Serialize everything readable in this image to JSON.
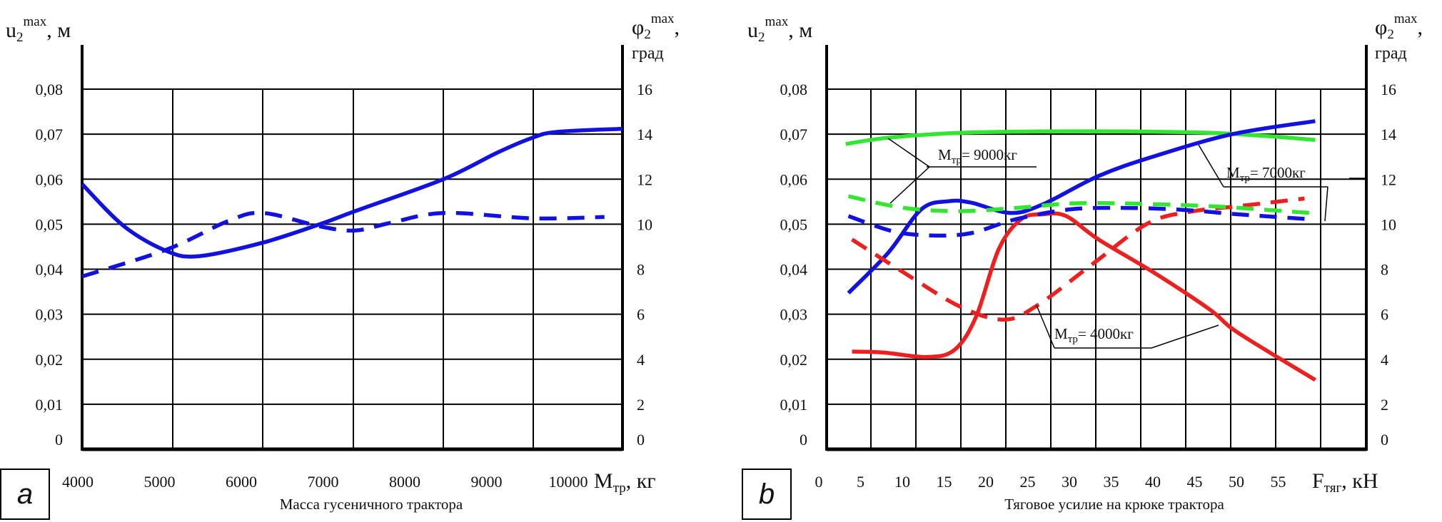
{
  "colors": {
    "blue": "#1212e0",
    "red": "#ee1f1f",
    "green": "#33e633",
    "grid": "#000000"
  },
  "chart_data": [
    {
      "type": "line",
      "panel_label": "a",
      "xlabel": "Масса гусеничного трактора",
      "x_axis_name": {
        "main": "M",
        "sub": "тр",
        "unit": ", кг"
      },
      "y_axis_name": {
        "main": "u",
        "sub": "2",
        "sup": "max",
        "unit": ", м"
      },
      "y2_axis_name": {
        "main": "φ",
        "sub": "2",
        "sup": "max",
        "comma": ",",
        "unit": "град"
      },
      "xlim": [
        4000,
        10600
      ],
      "ylim": [
        0,
        0.08
      ],
      "y2lim": [
        0,
        16
      ],
      "x_ticks": [
        4000,
        5000,
        6000,
        7000,
        8000,
        9000,
        10000
      ],
      "x_tick_labels": [
        "4000",
        "5000",
        "6000",
        "7000",
        "8000",
        "9000",
        "10000"
      ],
      "y_ticks": [
        0,
        0.01,
        0.02,
        0.03,
        0.04,
        0.05,
        0.06,
        0.07,
        0.08
      ],
      "y_tick_labels": [
        "0",
        "0,01",
        "0,02",
        "0,03",
        "0,04",
        "0,05",
        "0,06",
        "0,07",
        "0,08"
      ],
      "y2_tick_labels": [
        "0",
        "2",
        "4",
        "6",
        "8",
        "10",
        "12",
        "14",
        "16"
      ],
      "grid": true,
      "series": [
        {
          "name": "u2max",
          "color": "blue",
          "style": "solid",
          "x": [
            4000,
            4515,
            5040,
            5430,
            6210,
            6910,
            7340,
            8420,
            9080,
            9510,
            9810,
            10610
          ],
          "y": [
            0.0589,
            0.0495,
            0.044,
            0.0429,
            0.0459,
            0.05,
            0.0529,
            0.06,
            0.0659,
            0.0692,
            0.0705,
            0.0712
          ]
        },
        {
          "name": "φ2max",
          "color": "blue",
          "style": "dashed",
          "x": [
            4000,
            5040,
            5775,
            6210,
            6910,
            7340,
            7775,
            8430,
            9510,
            10390
          ],
          "y": [
            0.0384,
            0.0444,
            0.0506,
            0.0525,
            0.0495,
            0.0486,
            0.0503,
            0.0525,
            0.0513,
            0.0516
          ]
        }
      ]
    },
    {
      "type": "line",
      "panel_label": "b",
      "xlabel": "Тяговое усилие на крюке трактора",
      "x_axis_name": {
        "main": "F",
        "sub": "тяг",
        "unit": ", кН"
      },
      "y_axis_name": {
        "main": "u",
        "sub": "2",
        "sup": "max",
        "unit": ", м"
      },
      "y2_axis_name": {
        "main": "φ",
        "sub": "2",
        "sup": "max",
        "comma": ",",
        "unit": "град"
      },
      "xlim": [
        0,
        60
      ],
      "ylim": [
        0,
        0.08
      ],
      "y2lim": [
        0,
        16
      ],
      "x_ticks": [
        0,
        5,
        10,
        15,
        20,
        25,
        30,
        35,
        40,
        45,
        50,
        55
      ],
      "x_tick_labels": [
        "0",
        "5",
        "10",
        "15",
        "20",
        "25",
        "30",
        "35",
        "40",
        "45",
        "50",
        "55"
      ],
      "y_ticks": [
        0,
        0.01,
        0.02,
        0.03,
        0.04,
        0.05,
        0.06,
        0.07,
        0.08
      ],
      "y_tick_labels": [
        "0",
        "0,01",
        "0,02",
        "0,03",
        "0,04",
        "0,05",
        "0,06",
        "0,07",
        "0,08"
      ],
      "y2_tick_labels": [
        "0",
        "2",
        "4",
        "6",
        "8",
        "10",
        "12",
        "14",
        "16"
      ],
      "grid": true,
      "annotations": [
        {
          "main": "M",
          "sub": "тр",
          "text": "= 9000кг"
        },
        {
          "main": "M",
          "sub": "тр",
          "text": "= 7000кг"
        },
        {
          "main": "M",
          "sub": "тр",
          "text": "= 4000кг"
        }
      ],
      "series": [
        {
          "name": "u2max, Mтр=9000кг",
          "color": "green",
          "style": "solid",
          "x": [
            2.2,
            6.9,
            14.9,
            24,
            33.4,
            42.7,
            48.9,
            54.4
          ],
          "y": [
            0.0678,
            0.0692,
            0.0703,
            0.0706,
            0.0706,
            0.0703,
            0.0696,
            0.0687
          ]
        },
        {
          "name": "u2max, Mтр=7000кг",
          "color": "blue",
          "style": "solid",
          "x": [
            2.5,
            6.9,
            10.6,
            13.6,
            16.1,
            20.5,
            24.1,
            30.3,
            36.5,
            45.2,
            54.4
          ],
          "y": [
            0.0347,
            0.0436,
            0.0533,
            0.0551,
            0.0548,
            0.0525,
            0.0544,
            0.0607,
            0.0651,
            0.07,
            0.0729
          ]
        },
        {
          "name": "u2max, Mтр=4000кг",
          "color": "red",
          "style": "solid",
          "x": [
            2.9,
            6.3,
            11.2,
            14.3,
            16.7,
            19.2,
            21.7,
            24.1,
            26.7,
            30.3,
            36.5,
            42.7,
            45.8,
            54.4
          ],
          "y": [
            0.0217,
            0.0215,
            0.0205,
            0.0221,
            0.0295,
            0.0444,
            0.0511,
            0.0522,
            0.0518,
            0.0466,
            0.0392,
            0.031,
            0.0259,
            0.0154
          ]
        },
        {
          "name": "φ2max, Mтр=4000кг",
          "color": "red",
          "style": "dashed",
          "x": [
            2.9,
            8.7,
            14.9,
            19.8,
            23.6,
            29.8,
            35.9,
            40.9,
            45.8,
            53.2
          ],
          "y": [
            0.0466,
            0.0392,
            0.0317,
            0.0288,
            0.0321,
            0.0414,
            0.0503,
            0.0529,
            0.054,
            0.0557
          ]
        },
        {
          "name": "φ2max, Mтр=7000кг",
          "color": "blue",
          "style": "dashed",
          "x": [
            2.5,
            7.5,
            11.8,
            16.1,
            21.1,
            27.2,
            33.4,
            39.6,
            45.8,
            53.8
          ],
          "y": [
            0.0518,
            0.0484,
            0.0475,
            0.048,
            0.0511,
            0.0533,
            0.0536,
            0.0532,
            0.0522,
            0.0511
          ]
        },
        {
          "name": "φ2max, Mтр=9000кг",
          "color": "green",
          "style": "dashed",
          "x": [
            2.5,
            8.7,
            14.9,
            21.1,
            27.2,
            33.4,
            42.7,
            48.9,
            53.8
          ],
          "y": [
            0.0562,
            0.0536,
            0.0529,
            0.0536,
            0.0546,
            0.0546,
            0.054,
            0.0532,
            0.0525
          ]
        }
      ]
    }
  ]
}
